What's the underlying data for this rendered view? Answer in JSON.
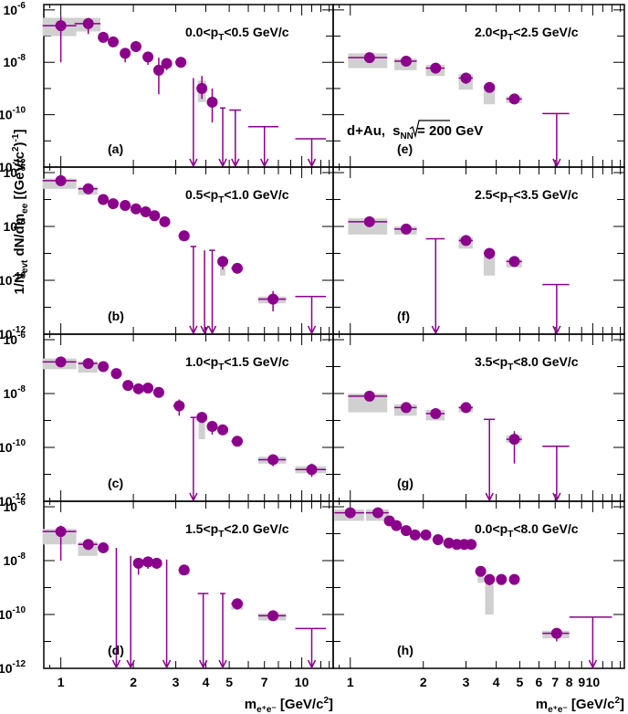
{
  "figure": {
    "y_title": "1/N_evt dN/dm_ee [(GeV/c²)⁻¹]",
    "y_title_parts": [
      "1/N",
      "evt",
      " dN/dm",
      "ee",
      " [(GeV/c",
      "2",
      ")",
      "-1",
      "]"
    ],
    "x_title_parts": [
      "m",
      "e⁺e⁻",
      " [GeV/c",
      "2",
      "]"
    ],
    "collab": {
      "system": "d+Au,",
      "sqrt_s": "s",
      "sub": "NN",
      "energy": " = 200 GeV"
    },
    "x_tick_labels": [
      {
        "value": 1,
        "text": "1"
      },
      {
        "value": 2,
        "text": "2"
      },
      {
        "value": 3,
        "text": "3"
      },
      {
        "value": 4,
        "text": "4"
      },
      {
        "value": 5,
        "text": "5"
      },
      {
        "value": 6,
        "text": "6"
      },
      {
        "value": 7,
        "text": "7"
      },
      {
        "value": 8,
        "text": "8"
      },
      {
        "value": 9,
        "text": "9"
      },
      {
        "value": 10,
        "text": "10"
      }
    ],
    "y_tick_labels": [
      {
        "exp": -6,
        "base": "10",
        "sup": "-6"
      },
      {
        "exp": -8,
        "base": "10",
        "sup": "-8"
      },
      {
        "exp": -10,
        "base": "10",
        "sup": "-10"
      },
      {
        "exp": -12,
        "base": "10",
        "sup": "-12"
      }
    ]
  },
  "chart_data": {
    "type": "scatter",
    "x_scale": "log",
    "y_scale": "log",
    "xlim": [
      0.85,
      13.5
    ],
    "ylim": [
      1e-12,
      1.6e-06
    ],
    "marker_color": "#8b008b",
    "syst_color": "#d0d0d0",
    "panels": [
      {
        "label": "(a)",
        "pt_range": "0.0<p_T<0.5 GeV/c",
        "pt_pre": "0.0<p",
        "pt_post": "<0.5 GeV/c",
        "points": [
          {
            "x": 1.0,
            "y": 2.5e-07,
            "w": 0.16,
            "elo": 1e-08,
            "ehi": 6e-07,
            "slo": 1e-07,
            "shi": 5e-07
          },
          {
            "x": 1.3,
            "y": 3e-07,
            "w": 0.16,
            "elo": 1.2e-07,
            "ehi": 5e-07,
            "slo": 1.5e-07,
            "shi": 5e-07
          },
          {
            "x": 1.5,
            "y": 9e-08,
            "w": 0,
            "elo": 7e-08,
            "ehi": 1.1e-07
          },
          {
            "x": 1.65,
            "y": 6e-08,
            "w": 0,
            "elo": 4e-08,
            "ehi": 8e-08
          },
          {
            "x": 1.85,
            "y": 2.2e-08,
            "w": 0,
            "elo": 1e-08,
            "ehi": 3.5e-08
          },
          {
            "x": 2.05,
            "y": 4e-08,
            "w": 0,
            "elo": 2.5e-08,
            "ehi": 6e-08
          },
          {
            "x": 2.3,
            "y": 1.6e-08,
            "w": 0,
            "elo": 8e-09,
            "ehi": 2.5e-08
          },
          {
            "x": 2.55,
            "y": 5e-09,
            "w": 0,
            "elo": 6e-10,
            "ehi": 1.5e-08
          },
          {
            "x": 2.75,
            "y": 9e-09,
            "w": 0,
            "elo": 5e-09,
            "ehi": 1.3e-08
          },
          {
            "x": 3.15,
            "y": 1e-08,
            "w": 0.17,
            "elo": 7e-09,
            "ehi": 1.3e-08
          },
          {
            "x": 3.85,
            "y": 1e-09,
            "w": 0.15,
            "elo": 4e-10,
            "ehi": 3e-09,
            "slo": 3e-10,
            "shi": 2e-09
          },
          {
            "x": 4.25,
            "y": 3e-10,
            "w": 0.12,
            "elo": 5e-11,
            "ehi": 1e-09
          }
        ],
        "limits": [
          {
            "x": 3.55,
            "w": 0,
            "y": 2.5e-09
          },
          {
            "x": 4.7,
            "w": 0.12,
            "y": 1.8e-10
          },
          {
            "x": 5.3,
            "w": 0.3,
            "y": 1.5e-10
          },
          {
            "x": 7.0,
            "w": 1.0,
            "y": 3.5e-11
          },
          {
            "x": 11.0,
            "w": 1.6,
            "y": 1.2e-11
          }
        ]
      },
      {
        "label": "(b)",
        "pt_range": "0.5<p_T<1.0 GeV/c",
        "pt_pre": "0.5<p",
        "pt_post": "<1.0 GeV/c",
        "points": [
          {
            "x": 1.0,
            "y": 5e-07,
            "w": 0.16,
            "elo": 4e-07,
            "ehi": 6e-07,
            "slo": 2.5e-07,
            "shi": 6e-07
          },
          {
            "x": 1.3,
            "y": 2.5e-07,
            "w": 0.12,
            "elo": 2e-07,
            "ehi": 3e-07,
            "slo": 1.5e-07,
            "shi": 3e-07
          },
          {
            "x": 1.5,
            "y": 1e-07,
            "w": 0,
            "elo": 8e-08,
            "ehi": 1.2e-07
          },
          {
            "x": 1.65,
            "y": 7e-08,
            "w": 0,
            "elo": 6e-08,
            "ehi": 8e-08
          },
          {
            "x": 1.85,
            "y": 6e-08,
            "w": 0,
            "elo": 5e-08,
            "ehi": 7e-08
          },
          {
            "x": 2.05,
            "y": 4.5e-08,
            "w": 0,
            "elo": 3.5e-08,
            "ehi": 5.5e-08
          },
          {
            "x": 2.25,
            "y": 3.5e-08,
            "w": 0,
            "elo": 2.8e-08,
            "ehi": 4.2e-08
          },
          {
            "x": 2.45,
            "y": 2.5e-08,
            "w": 0,
            "elo": 2e-08,
            "ehi": 3e-08
          },
          {
            "x": 2.7,
            "y": 1.5e-08,
            "w": 0,
            "elo": 1.1e-08,
            "ehi": 2e-08
          },
          {
            "x": 3.25,
            "y": 4.5e-09,
            "w": 0.17,
            "elo": 3.5e-09,
            "ehi": 5.5e-09,
            "slo": 3e-09,
            "shi": 5e-09
          },
          {
            "x": 4.7,
            "y": 5e-10,
            "w": 0.12,
            "elo": 2.5e-10,
            "ehi": 8e-10,
            "slo": 1.5e-10,
            "shi": 7e-10
          },
          {
            "x": 5.4,
            "y": 2.8e-10,
            "w": 0.3,
            "elo": 2.2e-10,
            "ehi": 3.4e-10
          },
          {
            "x": 7.6,
            "y": 2e-11,
            "w": 1.0,
            "elo": 7e-12,
            "ehi": 4e-11,
            "slo": 1.4e-11,
            "shi": 2.5e-11
          }
        ],
        "limits": [
          {
            "x": 3.55,
            "w": 0.1,
            "y": 1.8e-09
          },
          {
            "x": 3.95,
            "w": 0,
            "y": 1.3e-09
          },
          {
            "x": 4.25,
            "w": 0.12,
            "y": 1.3e-09
          },
          {
            "x": 11.0,
            "w": 1.6,
            "y": 2.5e-11
          }
        ]
      },
      {
        "label": "(c)",
        "pt_range": "1.0<p_T<1.5 GeV/c",
        "pt_pre": "1.0<p",
        "pt_post": "<1.5 GeV/c",
        "points": [
          {
            "x": 1.0,
            "y": 1.5e-07,
            "w": 0.16,
            "elo": 1.2e-07,
            "ehi": 1.8e-07,
            "slo": 8e-08,
            "shi": 2e-07
          },
          {
            "x": 1.3,
            "y": 1.3e-07,
            "w": 0.12,
            "elo": 1e-07,
            "ehi": 1.6e-07,
            "slo": 6e-08,
            "shi": 1.6e-07
          },
          {
            "x": 1.5,
            "y": 1e-07,
            "w": 0,
            "elo": 8e-08,
            "ehi": 1.2e-07
          },
          {
            "x": 1.7,
            "y": 5.5e-08,
            "w": 0,
            "elo": 4.5e-08,
            "ehi": 6.5e-08
          },
          {
            "x": 1.9,
            "y": 2e-08,
            "w": 0,
            "elo": 1.5e-08,
            "ehi": 2.5e-08
          },
          {
            "x": 2.1,
            "y": 1.5e-08,
            "w": 0,
            "elo": 1.1e-08,
            "ehi": 2e-08
          },
          {
            "x": 2.3,
            "y": 1.6e-08,
            "w": 0,
            "elo": 1.2e-08,
            "ehi": 2e-08
          },
          {
            "x": 2.55,
            "y": 1.1e-08,
            "w": 0,
            "elo": 8e-09,
            "ehi": 1.4e-08
          },
          {
            "x": 3.1,
            "y": 3.5e-09,
            "w": 0.17,
            "elo": 1.5e-09,
            "ehi": 6e-09
          },
          {
            "x": 3.85,
            "y": 1.3e-09,
            "w": 0.12,
            "elo": 8e-10,
            "ehi": 2e-09,
            "slo": 2e-10,
            "shi": 1.5e-09
          },
          {
            "x": 4.25,
            "y": 6e-10,
            "w": 0.12,
            "elo": 3e-10,
            "ehi": 9e-10
          },
          {
            "x": 4.7,
            "y": 4.5e-10,
            "w": 0.12,
            "elo": 3e-10,
            "ehi": 6e-10
          },
          {
            "x": 5.4,
            "y": 1.7e-10,
            "w": 0.3,
            "elo": 1.4e-10,
            "ehi": 2e-10
          },
          {
            "x": 7.6,
            "y": 3.5e-11,
            "w": 1.0,
            "elo": 2e-11,
            "ehi": 5e-11,
            "slo": 2.5e-11,
            "shi": 4.5e-11
          },
          {
            "x": 11.0,
            "y": 1.5e-11,
            "w": 1.6,
            "elo": 8e-12,
            "ehi": 2.5e-11,
            "slo": 1.1e-11,
            "shi": 2e-11
          }
        ],
        "limits": [
          {
            "x": 3.55,
            "w": 0.1,
            "y": 1.3e-09
          }
        ]
      },
      {
        "label": "(d)",
        "pt_range": "1.5<p_T<2.0 GeV/c",
        "pt_pre": "1.5<p",
        "pt_post": "<2.0 GeV/c",
        "points": [
          {
            "x": 1.0,
            "y": 1.2e-07,
            "w": 0.16,
            "elo": 1e-08,
            "ehi": 2e-07,
            "slo": 4e-08,
            "shi": 1.5e-07
          },
          {
            "x": 1.3,
            "y": 4e-08,
            "w": 0.12,
            "elo": 2.5e-08,
            "ehi": 5.5e-08,
            "slo": 1.5e-08,
            "shi": 5e-08
          },
          {
            "x": 1.5,
            "y": 3e-08,
            "w": 0,
            "elo": 2e-08,
            "ehi": 4e-08
          },
          {
            "x": 2.1,
            "y": 8e-09,
            "w": 0.07,
            "elo": 3e-09,
            "ehi": 1.1e-08
          },
          {
            "x": 2.3,
            "y": 9e-09,
            "w": 0,
            "elo": 5e-09,
            "ehi": 1.2e-08
          },
          {
            "x": 2.5,
            "y": 8e-09,
            "w": 0,
            "elo": 5e-09,
            "ehi": 1.1e-08
          },
          {
            "x": 3.25,
            "y": 4.5e-09,
            "w": 0.17,
            "elo": 3e-09,
            "ehi": 6e-09,
            "slo": 3e-09,
            "shi": 5e-09
          },
          {
            "x": 5.4,
            "y": 2.5e-10,
            "w": 0.3,
            "elo": 1.5e-10,
            "ehi": 3.5e-10,
            "slo": 1.5e-10,
            "shi": 3e-10
          },
          {
            "x": 7.6,
            "y": 9e-11,
            "w": 1.0,
            "elo": 6e-11,
            "ehi": 1.2e-10,
            "slo": 6e-11,
            "shi": 1.1e-10
          }
        ],
        "limits": [
          {
            "x": 1.7,
            "w": 0,
            "y": 3e-08
          },
          {
            "x": 1.95,
            "w": 0,
            "y": 1.5e-08
          },
          {
            "x": 2.75,
            "w": 0,
            "y": 1.1e-08
          },
          {
            "x": 3.9,
            "w": 0.2,
            "y": 6e-10
          },
          {
            "x": 4.7,
            "w": 0.12,
            "y": 6e-10
          },
          {
            "x": 11.0,
            "w": 1.6,
            "y": 3e-11
          }
        ]
      },
      {
        "label": "(e)",
        "pt_range": "2.0<p_T<2.5 GeV/c",
        "pt_pre": "2.0<p",
        "pt_post": "<2.5 GeV/c",
        "points": [
          {
            "x": 1.2,
            "y": 1.5e-08,
            "w": 0.22,
            "elo": 1.1e-08,
            "ehi": 2e-08,
            "slo": 6e-09,
            "shi": 2.2e-08
          },
          {
            "x": 1.7,
            "y": 1.1e-08,
            "w": 0.18,
            "elo": 8e-09,
            "ehi": 1.4e-08,
            "slo": 5e-09,
            "shi": 1.4e-08
          },
          {
            "x": 2.25,
            "y": 6e-09,
            "w": 0.2,
            "elo": 4e-09,
            "ehi": 8e-09,
            "slo": 3e-09,
            "shi": 8e-09
          },
          {
            "x": 3.0,
            "y": 2.5e-09,
            "w": 0.2,
            "elo": 1.5e-09,
            "ehi": 3.5e-09,
            "slo": 9e-10,
            "shi": 3.5e-09
          },
          {
            "x": 3.75,
            "y": 1.1e-09,
            "w": 0.2,
            "elo": 7e-10,
            "ehi": 1.5e-09,
            "slo": 2.5e-10,
            "shi": 1.4e-09
          },
          {
            "x": 4.75,
            "y": 4e-10,
            "w": 0.35,
            "elo": 3e-10,
            "ehi": 5e-10,
            "slo": 2.8e-10,
            "shi": 5e-10
          }
        ],
        "limits": [
          {
            "x": 7.1,
            "w": 0.9,
            "y": 1.1e-10
          }
        ]
      },
      {
        "label": "(f)",
        "pt_range": "2.5<p_T<3.5 GeV/c",
        "pt_pre": "2.5<p",
        "pt_post": "<3.5 GeV/c",
        "points": [
          {
            "x": 1.2,
            "y": 1.5e-08,
            "w": 0.22,
            "elo": 1.1e-08,
            "ehi": 2e-08,
            "slo": 5e-09,
            "shi": 2e-08
          },
          {
            "x": 1.7,
            "y": 8e-09,
            "w": 0.18,
            "elo": 6e-09,
            "ehi": 1e-08,
            "slo": 5e-09,
            "shi": 1e-08
          },
          {
            "x": 3.0,
            "y": 3e-09,
            "w": 0.2,
            "elo": 2e-09,
            "ehi": 4e-09,
            "slo": 1.5e-09,
            "shi": 4e-09
          },
          {
            "x": 3.75,
            "y": 1e-09,
            "w": 0.2,
            "elo": 6e-10,
            "ehi": 1.4e-09,
            "slo": 1.5e-10,
            "shi": 1.3e-09
          },
          {
            "x": 4.75,
            "y": 5e-10,
            "w": 0.35,
            "elo": 4e-10,
            "ehi": 6e-10,
            "slo": 3e-10,
            "shi": 6e-10
          }
        ],
        "limits": [
          {
            "x": 2.25,
            "w": 0.2,
            "y": 3.5e-09
          },
          {
            "x": 7.1,
            "w": 0.9,
            "y": 7e-11
          }
        ]
      },
      {
        "label": "(g)",
        "pt_range": "3.5<p_T<8.0 GeV/c",
        "pt_pre": "3.5<p",
        "pt_post": "<8.0 GeV/c",
        "points": [
          {
            "x": 1.2,
            "y": 8e-09,
            "w": 0.22,
            "elo": 6e-09,
            "ehi": 1e-08,
            "slo": 2e-09,
            "shi": 1e-08
          },
          {
            "x": 1.7,
            "y": 3e-09,
            "w": 0.18,
            "elo": 2e-09,
            "ehi": 4e-09,
            "slo": 1.5e-09,
            "shi": 4e-09
          },
          {
            "x": 2.25,
            "y": 1.8e-09,
            "w": 0.2,
            "elo": 1.2e-09,
            "ehi": 2.5e-09,
            "slo": 1e-09,
            "shi": 2.5e-09
          },
          {
            "x": 3.0,
            "y": 3e-09,
            "w": 0.2,
            "elo": 2e-09,
            "ehi": 4e-09,
            "slo": 2e-09,
            "shi": 3.5e-09
          },
          {
            "x": 4.75,
            "y": 2e-10,
            "w": 0.35,
            "elo": 2.5e-11,
            "ehi": 4e-10,
            "slo": 1.5e-10,
            "shi": 2.8e-10
          }
        ],
        "limits": [
          {
            "x": 3.75,
            "w": 0.2,
            "y": 1.1e-09
          },
          {
            "x": 7.1,
            "w": 0.9,
            "y": 1.1e-10
          }
        ]
      },
      {
        "label": "(h)",
        "pt_range": "0.0<p_T<8.0 GeV/c",
        "pt_pre": "0.0<p",
        "pt_post": "<8.0 GeV/c",
        "points": [
          {
            "x": 1.0,
            "y": 6e-07,
            "w": 0.14,
            "elo": 4.5e-07,
            "ehi": 7.5e-07,
            "slo": 3e-07,
            "shi": 8e-07
          },
          {
            "x": 1.3,
            "y": 6e-07,
            "w": 0.14,
            "elo": 4.5e-07,
            "ehi": 7.5e-07,
            "slo": 3e-07,
            "shi": 8e-07
          },
          {
            "x": 1.45,
            "y": 3e-07,
            "w": 0,
            "elo": 2.5e-07,
            "ehi": 3.5e-07
          },
          {
            "x": 1.55,
            "y": 2e-07,
            "w": 0,
            "elo": 1.7e-07,
            "ehi": 2.3e-07
          },
          {
            "x": 1.7,
            "y": 1.3e-07,
            "w": 0,
            "elo": 1.1e-07,
            "ehi": 1.5e-07
          },
          {
            "x": 1.85,
            "y": 9e-08,
            "w": 0,
            "elo": 7.5e-08,
            "ehi": 1.05e-07
          },
          {
            "x": 2.05,
            "y": 9e-08,
            "w": 0,
            "elo": 7.5e-08,
            "ehi": 1.05e-07
          },
          {
            "x": 2.3,
            "y": 6e-08,
            "w": 0,
            "elo": 5e-08,
            "ehi": 7e-08
          },
          {
            "x": 2.55,
            "y": 4.5e-08,
            "w": 0,
            "elo": 3.8e-08,
            "ehi": 5.2e-08
          },
          {
            "x": 2.75,
            "y": 4e-08,
            "w": 0,
            "elo": 3.3e-08,
            "ehi": 4.7e-08
          },
          {
            "x": 2.95,
            "y": 4e-08,
            "w": 0,
            "elo": 3.3e-08,
            "ehi": 4.7e-08
          },
          {
            "x": 3.15,
            "y": 4e-08,
            "w": 0,
            "elo": 3.3e-08,
            "ehi": 4.7e-08
          },
          {
            "x": 3.45,
            "y": 4e-09,
            "w": 0.1,
            "elo": 3e-09,
            "ehi": 5e-09,
            "slo": 1.5e-09,
            "shi": 5e-09
          },
          {
            "x": 3.75,
            "y": 2e-09,
            "w": 0.15,
            "elo": 1.2e-09,
            "ehi": 2.8e-09,
            "slo": 1e-10,
            "shi": 2.5e-09
          },
          {
            "x": 4.2,
            "y": 2e-09,
            "w": 0.12,
            "elo": 1.5e-09,
            "ehi": 2.5e-09,
            "slo": 1.2e-09,
            "shi": 2.5e-09
          },
          {
            "x": 4.75,
            "y": 2e-09,
            "w": 0.2,
            "elo": 1.5e-09,
            "ehi": 2.5e-09,
            "slo": 1.5e-09,
            "shi": 2.5e-09
          },
          {
            "x": 7.1,
            "y": 2e-11,
            "w": 0.9,
            "elo": 1e-11,
            "ehi": 3e-11,
            "slo": 1.3e-11,
            "shi": 2.5e-11
          }
        ],
        "limits": [
          {
            "x": 10.0,
            "w": 2.0,
            "y": 8e-11
          }
        ]
      }
    ]
  }
}
